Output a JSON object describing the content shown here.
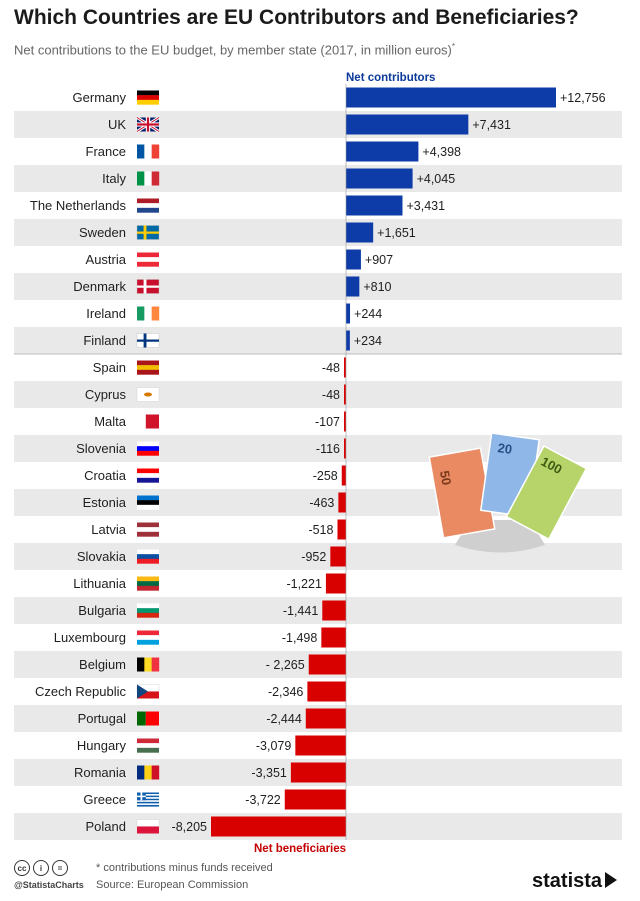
{
  "title": "Which Countries are EU Contributors and Beneficiaries?",
  "subtitle": "Net contributions to the EU budget, by member state (2017, in million euros)",
  "subtitle_mark": "*",
  "colors": {
    "positive": "#0d3ba8",
    "negative": "#d90000",
    "row_alt": "#e9e9e9",
    "label_positive": "#0b3a9a",
    "label_negative": "#c40000"
  },
  "chart_data": {
    "type": "bar",
    "orientation": "horizontal",
    "unit": "million euros",
    "group_labels": {
      "positive": "Net contributors",
      "negative": "Net beneficiaries"
    },
    "categories": [
      "Germany",
      "UK",
      "France",
      "Italy",
      "The Netherlands",
      "Sweden",
      "Austria",
      "Denmark",
      "Ireland",
      "Finland",
      "Spain",
      "Cyprus",
      "Malta",
      "Slovenia",
      "Croatia",
      "Estonia",
      "Latvia",
      "Slovakia",
      "Lithuania",
      "Bulgaria",
      "Luxembourg",
      "Belgium",
      "Czech Republic",
      "Portugal",
      "Hungary",
      "Romania",
      "Greece",
      "Poland"
    ],
    "values": [
      12756,
      7431,
      4398,
      4045,
      3431,
      1651,
      907,
      810,
      244,
      234,
      -48,
      -48,
      -107,
      -116,
      -258,
      -463,
      -518,
      -952,
      -1221,
      -1441,
      -1498,
      -2265,
      -2346,
      -2444,
      -3079,
      -3351,
      -3722,
      -8205
    ],
    "value_labels": [
      "+12,756",
      "+7,431",
      "+4,398",
      "+4,045",
      "+3,431",
      "+1,651",
      "+907",
      "+810",
      "+244",
      "+234",
      "-48",
      "-48",
      "-107",
      "-116",
      "-258",
      "-463",
      "-518",
      "-952",
      "-1,221",
      "-1,441",
      "-1,498",
      "- 2,265",
      "-2,346",
      "-2,444",
      "-3,079",
      "-3,351",
      "-3,722",
      "-8,205"
    ]
  },
  "flags": [
    {
      "type": "h",
      "colors": [
        "#000000",
        "#dd0000",
        "#ffce00"
      ]
    },
    {
      "type": "uk"
    },
    {
      "type": "v",
      "colors": [
        "#0055a4",
        "#ffffff",
        "#ef4135"
      ]
    },
    {
      "type": "v",
      "colors": [
        "#009246",
        "#ffffff",
        "#ce2b37"
      ]
    },
    {
      "type": "h",
      "colors": [
        "#ae1c28",
        "#ffffff",
        "#21468b"
      ]
    },
    {
      "type": "nordic",
      "colors": [
        "#006aa7",
        "#fecc00"
      ]
    },
    {
      "type": "h",
      "colors": [
        "#ed2939",
        "#ffffff",
        "#ed2939"
      ]
    },
    {
      "type": "nordic",
      "colors": [
        "#c8102e",
        "#ffffff"
      ]
    },
    {
      "type": "v",
      "colors": [
        "#169b62",
        "#ffffff",
        "#ff883e"
      ]
    },
    {
      "type": "nordic",
      "colors": [
        "#ffffff",
        "#003580"
      ]
    },
    {
      "type": "h3",
      "colors": [
        "#aa151b",
        "#f1bf00",
        "#aa151b"
      ]
    },
    {
      "type": "plain",
      "colors": [
        "#ffffff"
      ],
      "dot": "#d57800"
    },
    {
      "type": "v2",
      "colors": [
        "#ffffff",
        "#cf142b"
      ]
    },
    {
      "type": "h",
      "colors": [
        "#ffffff",
        "#0000ff",
        "#ff0000"
      ]
    },
    {
      "type": "h",
      "colors": [
        "#ff0000",
        "#ffffff",
        "#171796"
      ]
    },
    {
      "type": "h",
      "colors": [
        "#0072ce",
        "#000000",
        "#ffffff"
      ]
    },
    {
      "type": "h3",
      "colors": [
        "#9e3039",
        "#ffffff",
        "#9e3039"
      ]
    },
    {
      "type": "h",
      "colors": [
        "#ffffff",
        "#0b4ea2",
        "#ee1c25"
      ]
    },
    {
      "type": "h",
      "colors": [
        "#fdb913",
        "#006a44",
        "#c1272d"
      ]
    },
    {
      "type": "h",
      "colors": [
        "#ffffff",
        "#00966e",
        "#d62612"
      ]
    },
    {
      "type": "h",
      "colors": [
        "#ed2939",
        "#ffffff",
        "#00a1de"
      ]
    },
    {
      "type": "v",
      "colors": [
        "#000000",
        "#fdda24",
        "#ef3340"
      ]
    },
    {
      "type": "cz",
      "colors": [
        "#ffffff",
        "#d7141a",
        "#11457e"
      ]
    },
    {
      "type": "v2",
      "colors": [
        "#006600",
        "#ff0000"
      ]
    },
    {
      "type": "h",
      "colors": [
        "#ce2939",
        "#ffffff",
        "#477050"
      ]
    },
    {
      "type": "v",
      "colors": [
        "#002b7f",
        "#fcd116",
        "#ce1126"
      ]
    },
    {
      "type": "gr",
      "colors": [
        "#0d5eaf",
        "#ffffff"
      ]
    },
    {
      "type": "h2",
      "colors": [
        "#ffffff",
        "#dc143c"
      ]
    }
  ],
  "illustration": {
    "notes": [
      {
        "denomination": "50"
      },
      {
        "denomination": "20"
      },
      {
        "denomination": "100"
      }
    ]
  },
  "footer": {
    "note": "* contributions minus funds received",
    "source": "Source: European Commission",
    "handle": "@StatistaCharts",
    "brand": "statista",
    "cc_icons": [
      "cc",
      "i",
      "="
    ]
  }
}
